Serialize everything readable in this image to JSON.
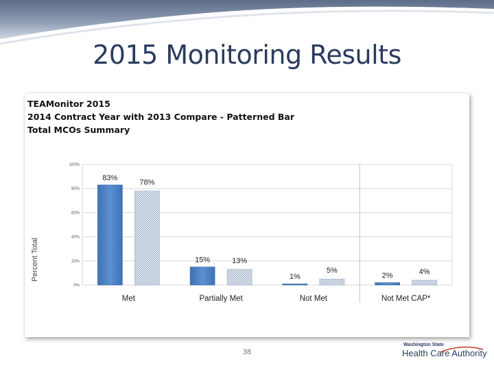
{
  "slide": {
    "title": "2015 Monitoring Results",
    "page_number": "38",
    "logo": {
      "small_text": "Washington State",
      "main_text": "Health Care Authority"
    }
  },
  "colors": {
    "band_dark": "#6f7f99",
    "band_light": "#c9d2e0",
    "bar_2014": "#4a7fc1",
    "bar_2013": "#8fa3bf",
    "axis_text": "#333333",
    "grid": "#d9d9d9"
  },
  "chart_data": {
    "type": "bar",
    "header": [
      "TEAMonitor 2015",
      "2014 Contract Year with 2013 Compare - Patterned Bar",
      "Total MCOs Summary"
    ],
    "ylabel": "Percent Total",
    "ylim": [
      0,
      100
    ],
    "yticks": [
      0,
      20,
      40,
      60,
      80,
      100
    ],
    "ytick_labels": [
      "0%",
      "20%",
      "40%",
      "60%",
      "80%",
      "100%"
    ],
    "categories": [
      "Met",
      "Partially Met",
      "Not Met",
      "Not Met CAP*"
    ],
    "series": [
      {
        "style": "solid",
        "values": [
          83,
          15,
          1,
          2
        ],
        "labels": [
          "83%",
          "15%",
          "1%",
          "2%"
        ]
      },
      {
        "style": "patterned",
        "values": [
          78,
          13,
          5,
          4
        ],
        "labels": [
          "78%",
          "13%",
          "5%",
          "4%"
        ]
      }
    ],
    "grid": true,
    "legend": "none"
  }
}
